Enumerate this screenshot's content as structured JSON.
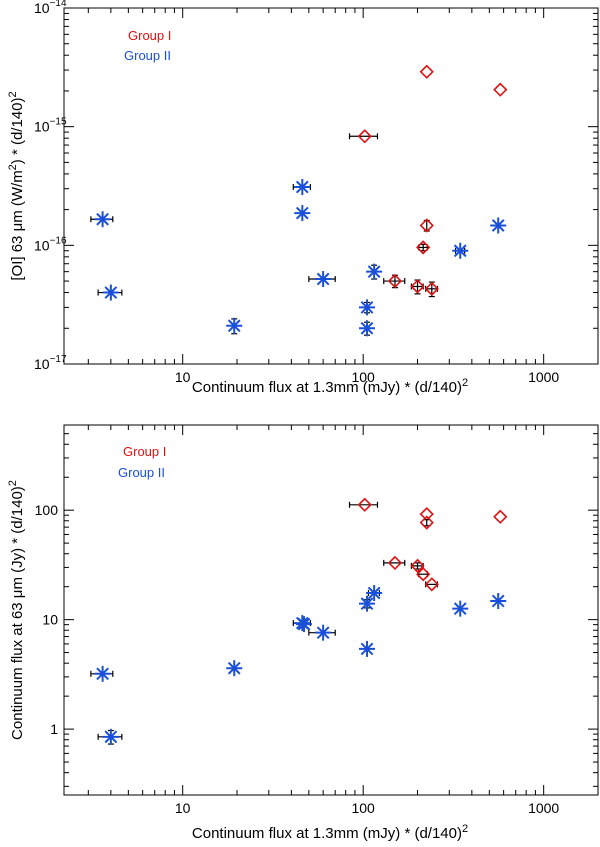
{
  "colors": {
    "group1": "#e01010",
    "group2": "#1a4fd8",
    "errorbar": "#000000"
  },
  "chart_data": [
    {
      "type": "scatter",
      "xscale": "log",
      "yscale": "log",
      "xlim": [
        2.2,
        2000
      ],
      "ylim": [
        1e-17,
        1e-14
      ],
      "xlabel": "Continuum flux at 1.3mm (mJy) * (d/140)",
      "xlabel_sup": "2",
      "ylabel": "[OI] 63 μm (W/m",
      "ylabel_sup1": "2",
      "ylabel_mid": ") * (d/140)",
      "ylabel_sup2": "2",
      "x_ticks": [
        10,
        100,
        1000
      ],
      "x_tick_labels": [
        "10",
        "100",
        "1000"
      ],
      "y_ticks": [
        1e-17,
        1e-16,
        1e-15,
        1e-14
      ],
      "y_tick_labels": [
        {
          "base": "10",
          "exp": "−17"
        },
        {
          "base": "10",
          "exp": "−16"
        },
        {
          "base": "10",
          "exp": "−15"
        },
        {
          "base": "10",
          "exp": "−14"
        }
      ],
      "legend": [
        "Group I",
        "Group II"
      ],
      "legend_position": "top-left",
      "series": [
        {
          "name": "Group I",
          "marker": "diamond",
          "color": "#e01010",
          "points": [
            {
              "x": 102,
              "y": 8.3e-16,
              "xerr": 18,
              "yerr": 0
            },
            {
              "x": 225,
              "y": 2.9e-15,
              "xerr": 0,
              "yerr": 0
            },
            {
              "x": 575,
              "y": 2.05e-15,
              "xerr": 0,
              "yerr": 0
            },
            {
              "x": 225,
              "y": 1.47e-16,
              "xerr": 0,
              "yerr": 1.5e-17
            },
            {
              "x": 215,
              "y": 9.6e-17,
              "xerr": 12,
              "yerr": 6e-18
            },
            {
              "x": 150,
              "y": 5e-17,
              "xerr": 20,
              "yerr": 6e-18
            },
            {
              "x": 200,
              "y": 4.5e-17,
              "xerr": 15,
              "yerr": 6e-18
            },
            {
              "x": 240,
              "y": 4.3e-17,
              "xerr": 18,
              "yerr": 6e-18
            }
          ]
        },
        {
          "name": "Group II",
          "marker": "asterisk",
          "color": "#1a4fd8",
          "points": [
            {
              "x": 3.6,
              "y": 1.66e-16,
              "xerr": 0.5,
              "yerr": 0
            },
            {
              "x": 4.0,
              "y": 4e-17,
              "xerr": 0.6,
              "yerr": 0
            },
            {
              "x": 19.3,
              "y": 2.1e-17,
              "xerr": 0,
              "yerr": 3e-18
            },
            {
              "x": 46,
              "y": 3.1e-16,
              "xerr": 5,
              "yerr": 0
            },
            {
              "x": 46,
              "y": 1.87e-16,
              "xerr": 0,
              "yerr": 0
            },
            {
              "x": 60,
              "y": 5.2e-17,
              "xerr": 10,
              "yerr": 0
            },
            {
              "x": 105,
              "y": 3e-17,
              "xerr": 0,
              "yerr": 3e-18
            },
            {
              "x": 105,
              "y": 2e-17,
              "xerr": 0,
              "yerr": 2.5e-18
            },
            {
              "x": 115,
              "y": 6e-17,
              "xerr": 0,
              "yerr": 8e-18
            },
            {
              "x": 345,
              "y": 9e-17,
              "xerr": 20,
              "yerr": 0
            },
            {
              "x": 560,
              "y": 1.47e-16,
              "xerr": 0,
              "yerr": 0
            }
          ]
        }
      ]
    },
    {
      "type": "scatter",
      "xscale": "log",
      "yscale": "log",
      "xlim": [
        2.2,
        2000
      ],
      "ylim": [
        0.25,
        600
      ],
      "xlabel": "Continuum flux at 1.3mm (mJy) * (d/140)",
      "xlabel_sup": "2",
      "ylabel": "Continuum flux at 63 μm (Jy) * (d/140)",
      "ylabel_sup": "2",
      "x_ticks": [
        10,
        100,
        1000
      ],
      "x_tick_labels": [
        "10",
        "100",
        "1000"
      ],
      "y_ticks": [
        1,
        10,
        100
      ],
      "y_tick_labels": [
        "1",
        "10",
        "100"
      ],
      "legend": [
        "Group I",
        "Group II"
      ],
      "legend_position": "top-left",
      "series": [
        {
          "name": "Group I",
          "marker": "diamond",
          "color": "#e01010",
          "points": [
            {
              "x": 102,
              "y": 112,
              "xerr": 18,
              "yerr": 0
            },
            {
              "x": 225,
              "y": 92,
              "xerr": 0,
              "yerr": 0
            },
            {
              "x": 225,
              "y": 77,
              "xerr": 0,
              "yerr": 5
            },
            {
              "x": 575,
              "y": 87,
              "xerr": 0,
              "yerr": 0
            },
            {
              "x": 150,
              "y": 33,
              "xerr": 20,
              "yerr": 0
            },
            {
              "x": 200,
              "y": 31,
              "xerr": 15,
              "yerr": 2
            },
            {
              "x": 215,
              "y": 26,
              "xerr": 12,
              "yerr": 0
            },
            {
              "x": 240,
              "y": 21,
              "xerr": 18,
              "yerr": 0
            }
          ]
        },
        {
          "name": "Group II",
          "marker": "asterisk",
          "color": "#1a4fd8",
          "points": [
            {
              "x": 3.6,
              "y": 3.2,
              "xerr": 0.5,
              "yerr": 0
            },
            {
              "x": 4.0,
              "y": 0.85,
              "xerr": 0.6,
              "yerr": 0.12
            },
            {
              "x": 19.3,
              "y": 3.6,
              "xerr": 0,
              "yerr": 0
            },
            {
              "x": 46,
              "y": 9.3,
              "xerr": 5,
              "yerr": 0
            },
            {
              "x": 47,
              "y": 9.1,
              "xerr": 0,
              "yerr": 0
            },
            {
              "x": 60,
              "y": 7.6,
              "xerr": 10,
              "yerr": 0
            },
            {
              "x": 105,
              "y": 14,
              "xerr": 0,
              "yerr": 1.2
            },
            {
              "x": 105,
              "y": 5.4,
              "xerr": 0,
              "yerr": 0
            },
            {
              "x": 115,
              "y": 17.5,
              "xerr": 8,
              "yerr": 0
            },
            {
              "x": 345,
              "y": 12.6,
              "xerr": 0,
              "yerr": 0
            },
            {
              "x": 560,
              "y": 14.8,
              "xerr": 0,
              "yerr": 0
            }
          ]
        }
      ]
    }
  ]
}
